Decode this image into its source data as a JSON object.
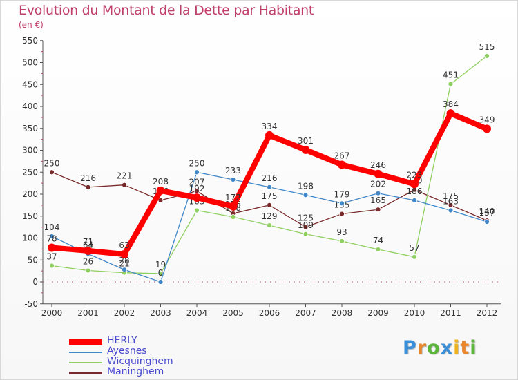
{
  "header": {
    "title": "Evolution du Montant de la Dette par Habitant",
    "unit": "(en €)"
  },
  "logo": {
    "letters": [
      "P",
      "r",
      "o",
      "x",
      "i",
      "t",
      "i"
    ],
    "colors": [
      "#3a8fd8",
      "#e8862b",
      "#5ab53a",
      "#3a8fd8",
      "#f0b020",
      "#e8862b",
      "#5ab53a"
    ]
  },
  "chart_data": {
    "type": "line",
    "title": "Evolution du Montant de la Dette par Habitant",
    "ylabel": "(en €)",
    "xlabel": "",
    "x": [
      "2000",
      "2001",
      "2002",
      "2003",
      "2004",
      "2005",
      "2006",
      "2007",
      "2008",
      "2009",
      "2010",
      "2011",
      "2012"
    ],
    "ylim": [
      -50,
      550
    ],
    "yticks": [
      -50,
      0,
      50,
      100,
      150,
      200,
      250,
      300,
      350,
      400,
      450,
      500,
      550
    ],
    "grid": false,
    "legend_position": "bottom-left",
    "series": [
      {
        "name": "Maninghem",
        "color": "#7a2a2a",
        "values": [
          250,
          216,
          221,
          186,
          207,
          156,
          175,
          125,
          155,
          165,
          210,
          175,
          140
        ]
      },
      {
        "name": "Wicquinghem",
        "color": "#90d060",
        "values": [
          37,
          26,
          21,
          19,
          163,
          148,
          129,
          109,
          93,
          74,
          57,
          451,
          515
        ]
      },
      {
        "name": "Ayesnes",
        "color": "#3f87c8",
        "values": [
          104,
          64,
          28,
          0,
          250,
          233,
          216,
          198,
          179,
          202,
          186,
          163,
          137
        ]
      },
      {
        "name": "HERLY",
        "color": "#ff0000",
        "values": [
          78,
          71,
          63,
          208,
          192,
          172,
          334,
          301,
          267,
          246,
          223,
          384,
          349
        ]
      }
    ]
  }
}
